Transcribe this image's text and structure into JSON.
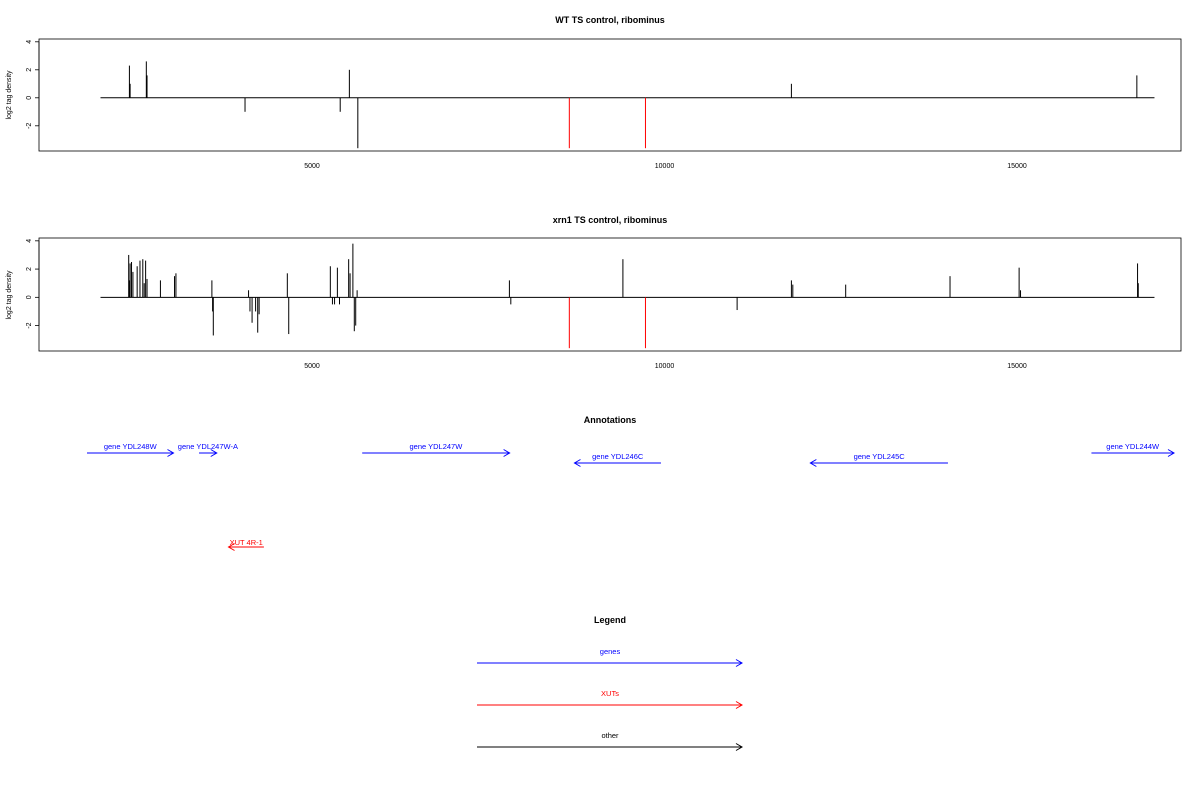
{
  "chart_data": [
    {
      "type": "bar",
      "title": "WT TS control, ribominus",
      "ylabel": "log2 tag density",
      "xlabel": "",
      "xlim": [
        1700,
        17500
      ],
      "ylim": [
        -3.8,
        4.2
      ],
      "yticks": [
        -2,
        0,
        2,
        4
      ],
      "xticks": [
        5000,
        10000,
        15000
      ],
      "baseline": {
        "from": 2000,
        "to": 16950
      },
      "grid": false,
      "series": [
        {
          "color": "#000000",
          "x": [
            2410,
            2420,
            2650,
            2660,
            4050,
            5400,
            5530,
            5650,
            11800,
            16700
          ],
          "values": [
            2.3,
            1.0,
            2.6,
            1.6,
            -1.0,
            -1.0,
            2.0,
            -3.6,
            1.0,
            1.6
          ]
        },
        {
          "color": "#ff0000",
          "x": [
            8650,
            9730
          ],
          "values": [
            -3.6,
            -3.6
          ]
        }
      ]
    },
    {
      "type": "bar",
      "title": "xrn1 TS control, ribominus",
      "ylabel": "log2 tag density",
      "xlabel": "",
      "xlim": [
        1700,
        17500
      ],
      "ylim": [
        -3.8,
        4.2
      ],
      "yticks": [
        -2,
        0,
        2,
        4
      ],
      "xticks": [
        5000,
        10000,
        15000
      ],
      "baseline": {
        "from": 2000,
        "to": 16950
      },
      "grid": false,
      "series": [
        {
          "color": "#000000",
          "x": [
            2400,
            2410,
            2420,
            2440,
            2460,
            2520,
            2560,
            2600,
            2620,
            2640,
            2660,
            2850,
            3050,
            3070,
            3580,
            3590,
            3600,
            4100,
            4120,
            4150,
            4200,
            4230,
            4250,
            4650,
            4670,
            5260,
            5290,
            5320,
            5360,
            5390,
            5520,
            5540,
            5580,
            5600,
            5620,
            5640,
            7800,
            7820,
            9410,
            11030,
            11800,
            11820,
            12570,
            14050,
            15030,
            15050,
            16710,
            16720
          ],
          "values": [
            3.0,
            1.2,
            2.4,
            2.5,
            1.8,
            2.2,
            2.6,
            2.7,
            1.0,
            2.6,
            1.3,
            1.2,
            1.5,
            1.7,
            1.2,
            -1.0,
            -2.7,
            0.5,
            -1.0,
            -1.8,
            -1.0,
            -2.5,
            -1.2,
            1.7,
            -2.6,
            2.2,
            -0.5,
            -0.5,
            2.1,
            -0.5,
            2.7,
            1.7,
            3.8,
            -2.4,
            -2.0,
            0.5,
            1.2,
            -0.5,
            2.7,
            -0.9,
            1.2,
            0.9,
            0.9,
            1.5,
            2.1,
            0.5,
            2.4,
            1.0
          ]
        },
        {
          "color": "#ff0000",
          "x": [
            8650,
            9730
          ],
          "values": [
            -3.6,
            -3.6
          ]
        }
      ]
    }
  ],
  "annotations": {
    "title": "Annotations",
    "genes": [
      {
        "label": "gene YDL248W",
        "start": 1850,
        "end": 4050,
        "row": 0,
        "dir": "right"
      },
      {
        "label": "gene YDL247W-A",
        "start": 4700,
        "end": 5150,
        "row": 0,
        "dir": "right"
      },
      {
        "label": "gene YDL247W",
        "start": 8850,
        "end": 12600,
        "row": 0,
        "dir": "right"
      },
      {
        "label": "gene YDL246C",
        "start": 14250,
        "end": 16450,
        "row": 1,
        "dir": "left"
      },
      {
        "label": "gene YDL245C",
        "start": 20250,
        "end": 23750,
        "row": 1,
        "dir": "left"
      },
      {
        "label": "gene YDL244W",
        "start": 27400,
        "end": 29500,
        "row": 0,
        "dir": "right"
      }
    ],
    "xuts": [
      {
        "label": "XUT 4R-1",
        "start": 5450,
        "end": 6350,
        "dir": "left"
      }
    ]
  },
  "legend": {
    "title": "Legend",
    "items": [
      {
        "label": "genes",
        "color": "#0000ff"
      },
      {
        "label": "XUTs",
        "color": "#ff0000"
      },
      {
        "label": "other",
        "color": "#000000"
      }
    ]
  },
  "colors": {
    "gene": "#0000ff",
    "xut": "#ff0000",
    "other": "#000000",
    "axis": "#000000"
  }
}
